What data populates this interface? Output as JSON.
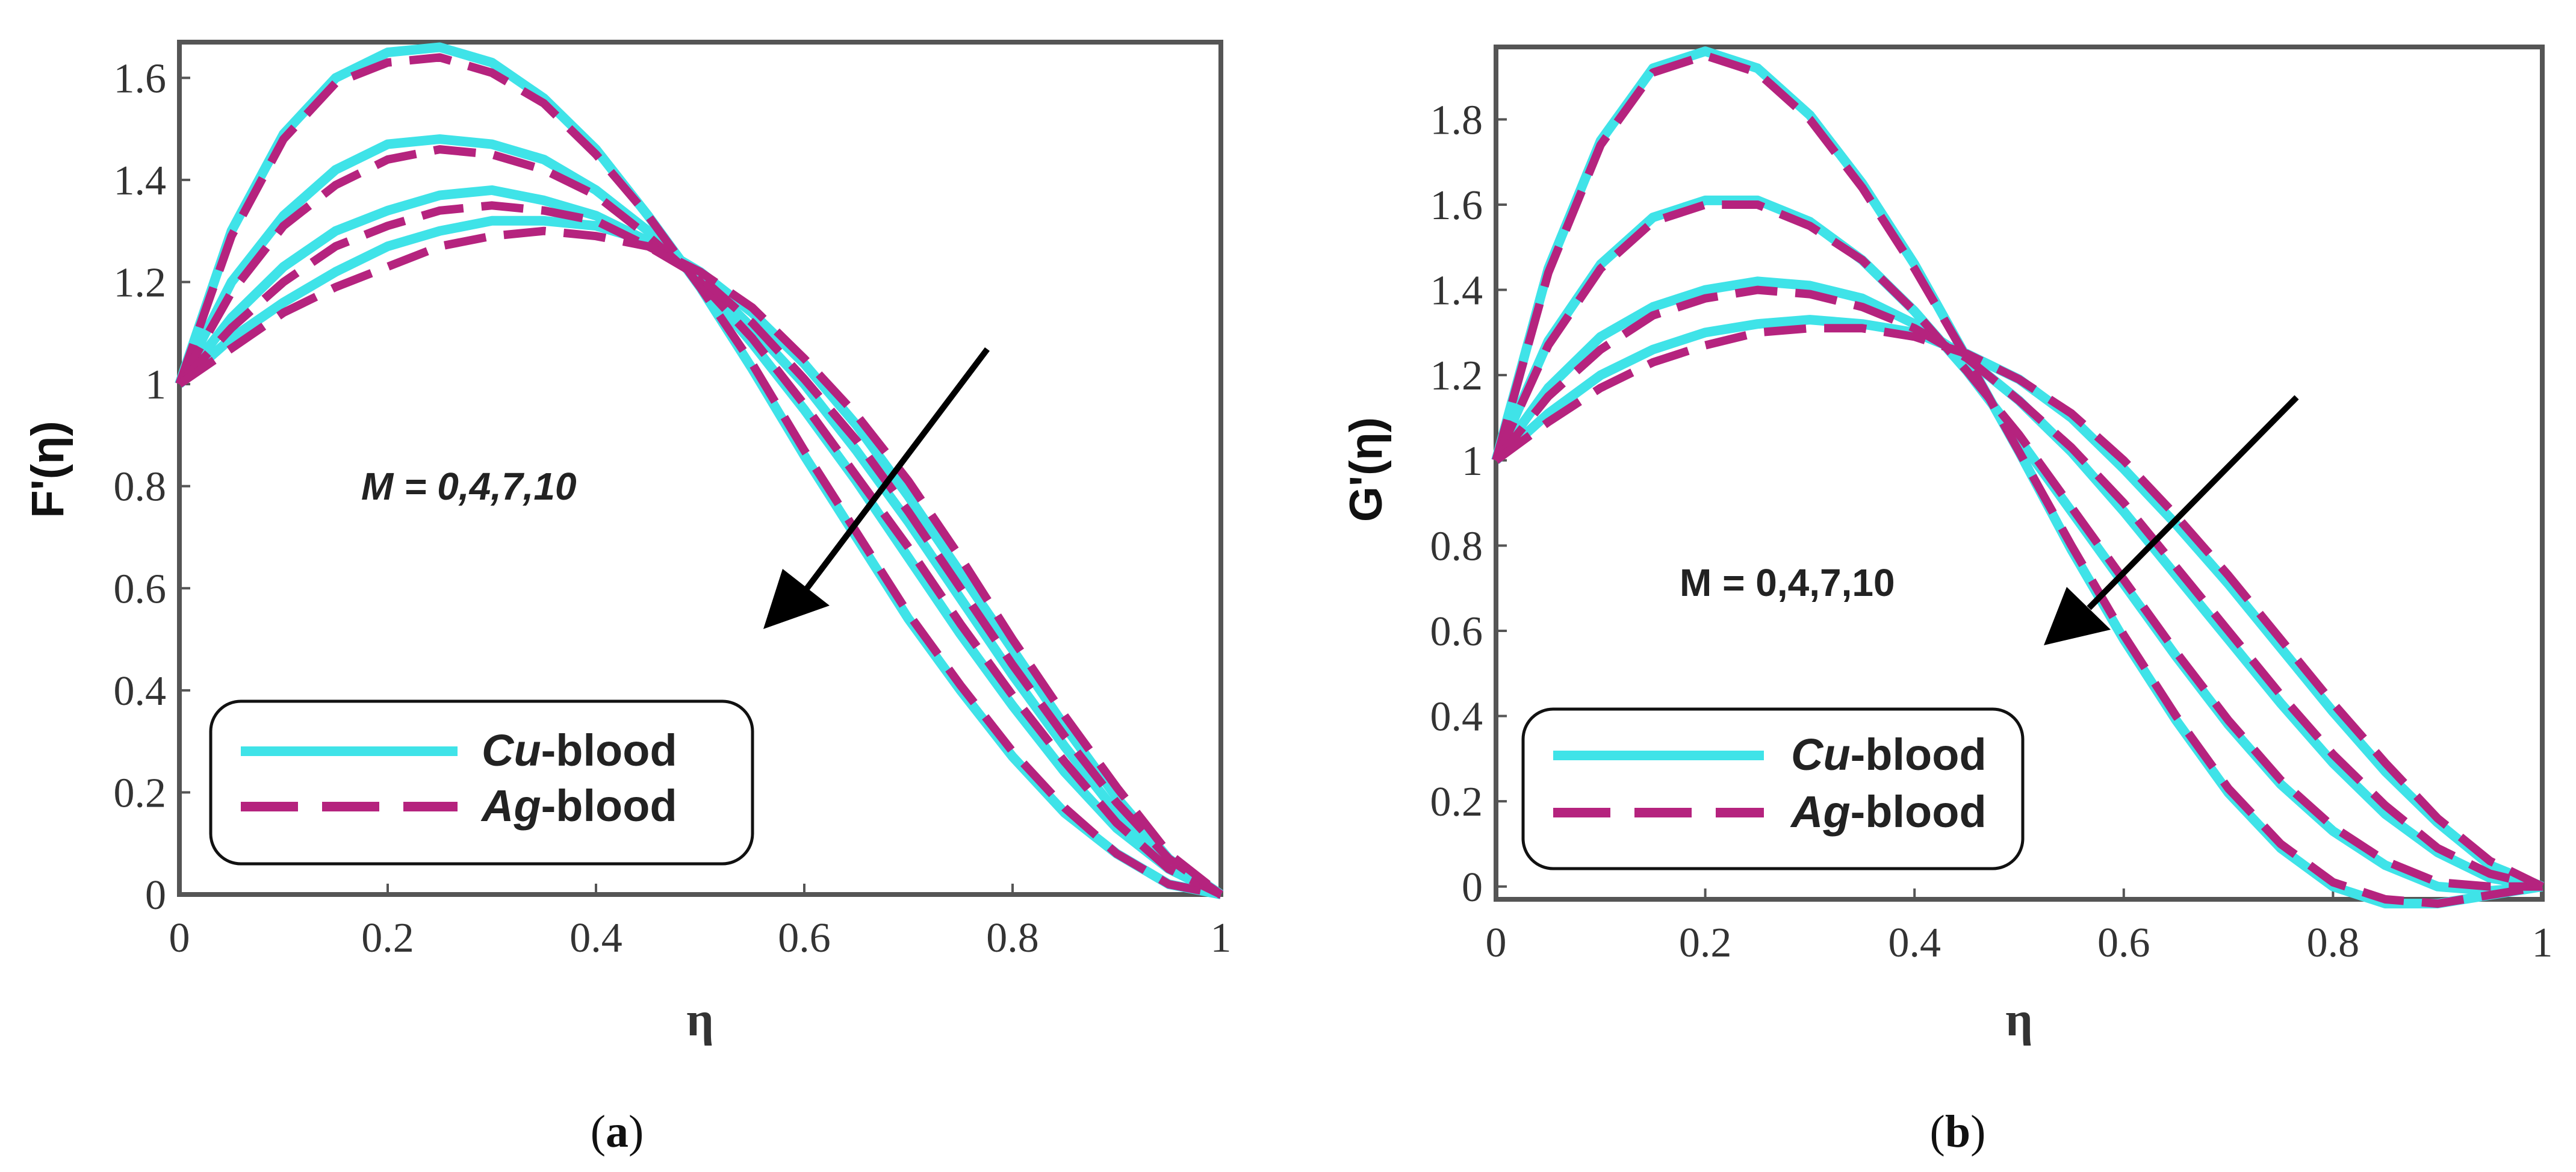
{
  "colors": {
    "cu": "#3FE3E8",
    "ag": "#B5237E",
    "frame": "#555555",
    "arrow": "#000000"
  },
  "chart_data": [
    {
      "type": "line",
      "panel": "a",
      "caption": "(a)",
      "xlabel": "η",
      "ylabel": "F'(η)",
      "xlim": [
        0,
        1
      ],
      "ylim": [
        0,
        1.67
      ],
      "xticks": [
        0,
        0.2,
        0.4,
        0.6,
        0.8,
        1
      ],
      "xtick_labels": [
        "0",
        "0.2",
        "0.4",
        "0.6",
        "0.8",
        "1"
      ],
      "yticks": [
        0,
        0.2,
        0.4,
        0.6,
        0.8,
        1,
        1.2,
        1.4,
        1.6
      ],
      "ytick_labels": [
        "0",
        "0.2",
        "0.4",
        "0.6",
        "0.8",
        "1",
        "1.2",
        "1.4",
        "1.6"
      ],
      "annotation": "M = 0,4,7,10",
      "legend": {
        "position": "bottom-left",
        "entries": [
          "Cu-blood",
          "Ag-blood"
        ]
      },
      "series": [
        {
          "name": "Cu-blood",
          "M": 0,
          "style": "solid",
          "x": [
            0,
            0.05,
            0.1,
            0.15,
            0.2,
            0.25,
            0.3,
            0.35,
            0.4,
            0.45,
            0.5,
            0.55,
            0.6,
            0.65,
            0.7,
            0.75,
            0.8,
            0.85,
            0.9,
            0.95,
            1
          ],
          "y": [
            1,
            1.3,
            1.49,
            1.6,
            1.65,
            1.66,
            1.63,
            1.56,
            1.46,
            1.33,
            1.19,
            1.03,
            0.86,
            0.7,
            0.54,
            0.4,
            0.27,
            0.16,
            0.08,
            0.02,
            0
          ]
        },
        {
          "name": "Ag-blood",
          "M": 0,
          "style": "dashed",
          "x": [
            0,
            0.05,
            0.1,
            0.15,
            0.2,
            0.25,
            0.3,
            0.35,
            0.4,
            0.45,
            0.5,
            0.55,
            0.6,
            0.65,
            0.7,
            0.75,
            0.8,
            0.85,
            0.9,
            0.95,
            1
          ],
          "y": [
            1,
            1.29,
            1.48,
            1.59,
            1.63,
            1.64,
            1.61,
            1.55,
            1.45,
            1.33,
            1.19,
            1.04,
            0.87,
            0.71,
            0.55,
            0.41,
            0.28,
            0.17,
            0.08,
            0.02,
            0
          ]
        },
        {
          "name": "Cu-blood",
          "M": 4,
          "style": "solid",
          "x": [
            0,
            0.05,
            0.1,
            0.15,
            0.2,
            0.25,
            0.3,
            0.35,
            0.4,
            0.45,
            0.5,
            0.55,
            0.6,
            0.65,
            0.7,
            0.75,
            0.8,
            0.85,
            0.9,
            0.95,
            1
          ],
          "y": [
            1,
            1.2,
            1.33,
            1.42,
            1.47,
            1.48,
            1.47,
            1.44,
            1.38,
            1.3,
            1.2,
            1.08,
            0.95,
            0.81,
            0.66,
            0.51,
            0.37,
            0.24,
            0.13,
            0.05,
            0
          ]
        },
        {
          "name": "Ag-blood",
          "M": 4,
          "style": "dashed",
          "x": [
            0,
            0.05,
            0.1,
            0.15,
            0.2,
            0.25,
            0.3,
            0.35,
            0.4,
            0.45,
            0.5,
            0.55,
            0.6,
            0.65,
            0.7,
            0.75,
            0.8,
            0.85,
            0.9,
            0.95,
            1
          ],
          "y": [
            1,
            1.18,
            1.31,
            1.39,
            1.44,
            1.46,
            1.45,
            1.42,
            1.37,
            1.29,
            1.2,
            1.09,
            0.96,
            0.82,
            0.68,
            0.53,
            0.39,
            0.26,
            0.14,
            0.05,
            0
          ]
        },
        {
          "name": "Cu-blood",
          "M": 7,
          "style": "solid",
          "x": [
            0,
            0.05,
            0.1,
            0.15,
            0.2,
            0.25,
            0.3,
            0.35,
            0.4,
            0.45,
            0.5,
            0.55,
            0.6,
            0.65,
            0.7,
            0.75,
            0.8,
            0.85,
            0.9,
            0.95,
            1
          ],
          "y": [
            1,
            1.13,
            1.23,
            1.3,
            1.34,
            1.37,
            1.38,
            1.36,
            1.33,
            1.28,
            1.21,
            1.11,
            1.0,
            0.87,
            0.73,
            0.58,
            0.43,
            0.29,
            0.16,
            0.06,
            0
          ]
        },
        {
          "name": "Ag-blood",
          "M": 7,
          "style": "dashed",
          "x": [
            0,
            0.05,
            0.1,
            0.15,
            0.2,
            0.25,
            0.3,
            0.35,
            0.4,
            0.45,
            0.5,
            0.55,
            0.6,
            0.65,
            0.7,
            0.75,
            0.8,
            0.85,
            0.9,
            0.95,
            1
          ],
          "y": [
            1,
            1.11,
            1.2,
            1.27,
            1.31,
            1.34,
            1.35,
            1.34,
            1.32,
            1.27,
            1.21,
            1.12,
            1.01,
            0.89,
            0.75,
            0.6,
            0.45,
            0.31,
            0.18,
            0.07,
            0
          ]
        },
        {
          "name": "Cu-blood",
          "M": 10,
          "style": "solid",
          "x": [
            0,
            0.05,
            0.1,
            0.15,
            0.2,
            0.25,
            0.3,
            0.35,
            0.4,
            0.45,
            0.5,
            0.55,
            0.6,
            0.65,
            0.7,
            0.75,
            0.8,
            0.85,
            0.9,
            0.95,
            1
          ],
          "y": [
            1,
            1.09,
            1.16,
            1.22,
            1.27,
            1.3,
            1.32,
            1.32,
            1.31,
            1.28,
            1.22,
            1.14,
            1.04,
            0.92,
            0.78,
            0.63,
            0.48,
            0.33,
            0.19,
            0.07,
            0
          ]
        },
        {
          "name": "Ag-blood",
          "M": 10,
          "style": "dashed",
          "x": [
            0,
            0.05,
            0.1,
            0.15,
            0.2,
            0.25,
            0.3,
            0.35,
            0.4,
            0.45,
            0.5,
            0.55,
            0.6,
            0.65,
            0.7,
            0.75,
            0.8,
            0.85,
            0.9,
            0.95,
            1
          ],
          "y": [
            1,
            1.07,
            1.14,
            1.19,
            1.23,
            1.27,
            1.29,
            1.3,
            1.29,
            1.27,
            1.22,
            1.15,
            1.05,
            0.94,
            0.81,
            0.66,
            0.5,
            0.35,
            0.21,
            0.08,
            0
          ]
        }
      ]
    },
    {
      "type": "line",
      "panel": "b",
      "caption": "(b)",
      "xlabel": "η",
      "ylabel": "G'(η)",
      "xlim": [
        0,
        1
      ],
      "ylim": [
        -0.03,
        1.97
      ],
      "xticks": [
        0,
        0.2,
        0.4,
        0.6,
        0.8,
        1
      ],
      "xtick_labels": [
        "0",
        "0.2",
        "0.4",
        "0.6",
        "0.8",
        "1"
      ],
      "yticks": [
        0,
        0.2,
        0.4,
        0.6,
        0.8,
        1,
        1.2,
        1.4,
        1.6,
        1.8
      ],
      "ytick_labels": [
        "0",
        "0.2",
        "0.4",
        "0.6",
        "0.8",
        "1",
        "1.2",
        "1.4",
        "1.6",
        "1.8"
      ],
      "annotation": "M = 0,4,7,10",
      "legend": {
        "position": "bottom-left",
        "entries": [
          "Cu-blood",
          "Ag-blood"
        ]
      },
      "series": [
        {
          "name": "Cu-blood",
          "M": 0,
          "style": "solid",
          "x": [
            0,
            0.05,
            0.1,
            0.15,
            0.2,
            0.25,
            0.3,
            0.35,
            0.4,
            0.45,
            0.5,
            0.55,
            0.6,
            0.65,
            0.7,
            0.75,
            0.8,
            0.85,
            0.9,
            0.95,
            1
          ],
          "y": [
            1,
            1.45,
            1.75,
            1.92,
            1.96,
            1.92,
            1.81,
            1.65,
            1.46,
            1.24,
            1.02,
            0.79,
            0.58,
            0.39,
            0.22,
            0.09,
            0.0,
            -0.04,
            -0.04,
            -0.02,
            0
          ]
        },
        {
          "name": "Ag-blood",
          "M": 0,
          "style": "dashed",
          "x": [
            0,
            0.05,
            0.1,
            0.15,
            0.2,
            0.25,
            0.3,
            0.35,
            0.4,
            0.45,
            0.5,
            0.55,
            0.6,
            0.65,
            0.7,
            0.75,
            0.8,
            0.85,
            0.9,
            0.95,
            1
          ],
          "y": [
            1,
            1.44,
            1.74,
            1.91,
            1.95,
            1.91,
            1.8,
            1.64,
            1.45,
            1.24,
            1.02,
            0.8,
            0.59,
            0.4,
            0.23,
            0.1,
            0.01,
            -0.03,
            -0.04,
            -0.02,
            0
          ]
        },
        {
          "name": "Cu-blood",
          "M": 4,
          "style": "solid",
          "x": [
            0,
            0.05,
            0.1,
            0.15,
            0.2,
            0.25,
            0.3,
            0.35,
            0.4,
            0.45,
            0.5,
            0.55,
            0.6,
            0.65,
            0.7,
            0.75,
            0.8,
            0.85,
            0.9,
            0.95,
            1
          ],
          "y": [
            1,
            1.28,
            1.46,
            1.57,
            1.61,
            1.61,
            1.56,
            1.47,
            1.35,
            1.21,
            1.05,
            0.88,
            0.71,
            0.54,
            0.38,
            0.24,
            0.13,
            0.05,
            0.0,
            -0.01,
            0
          ]
        },
        {
          "name": "Ag-blood",
          "M": 4,
          "style": "dashed",
          "x": [
            0,
            0.05,
            0.1,
            0.15,
            0.2,
            0.25,
            0.3,
            0.35,
            0.4,
            0.45,
            0.5,
            0.55,
            0.6,
            0.65,
            0.7,
            0.75,
            0.8,
            0.85,
            0.9,
            0.95,
            1
          ],
          "y": [
            1,
            1.27,
            1.45,
            1.56,
            1.6,
            1.6,
            1.55,
            1.47,
            1.35,
            1.21,
            1.06,
            0.89,
            0.72,
            0.55,
            0.39,
            0.25,
            0.14,
            0.06,
            0.01,
            0.0,
            0
          ]
        },
        {
          "name": "Cu-blood",
          "M": 7,
          "style": "solid",
          "x": [
            0,
            0.05,
            0.1,
            0.15,
            0.2,
            0.25,
            0.3,
            0.35,
            0.4,
            0.45,
            0.5,
            0.55,
            0.6,
            0.65,
            0.7,
            0.75,
            0.8,
            0.85,
            0.9,
            0.95,
            1
          ],
          "y": [
            1,
            1.17,
            1.29,
            1.36,
            1.4,
            1.42,
            1.41,
            1.38,
            1.32,
            1.24,
            1.14,
            1.02,
            0.88,
            0.73,
            0.58,
            0.43,
            0.29,
            0.17,
            0.08,
            0.02,
            0
          ]
        },
        {
          "name": "Ag-blood",
          "M": 7,
          "style": "dashed",
          "x": [
            0,
            0.05,
            0.1,
            0.15,
            0.2,
            0.25,
            0.3,
            0.35,
            0.4,
            0.45,
            0.5,
            0.55,
            0.6,
            0.65,
            0.7,
            0.75,
            0.8,
            0.85,
            0.9,
            0.95,
            1
          ],
          "y": [
            1,
            1.15,
            1.26,
            1.34,
            1.38,
            1.4,
            1.39,
            1.36,
            1.31,
            1.24,
            1.14,
            1.03,
            0.9,
            0.75,
            0.6,
            0.45,
            0.31,
            0.19,
            0.09,
            0.03,
            0
          ]
        },
        {
          "name": "Cu-blood",
          "M": 10,
          "style": "solid",
          "x": [
            0,
            0.05,
            0.1,
            0.15,
            0.2,
            0.25,
            0.3,
            0.35,
            0.4,
            0.45,
            0.5,
            0.55,
            0.6,
            0.65,
            0.7,
            0.75,
            0.8,
            0.85,
            0.9,
            0.95,
            1
          ],
          "y": [
            1,
            1.11,
            1.2,
            1.26,
            1.3,
            1.32,
            1.33,
            1.32,
            1.3,
            1.25,
            1.19,
            1.1,
            0.98,
            0.85,
            0.71,
            0.56,
            0.41,
            0.27,
            0.15,
            0.05,
            0
          ]
        },
        {
          "name": "Ag-blood",
          "M": 10,
          "style": "dashed",
          "x": [
            0,
            0.05,
            0.1,
            0.15,
            0.2,
            0.25,
            0.3,
            0.35,
            0.4,
            0.45,
            0.5,
            0.55,
            0.6,
            0.65,
            0.7,
            0.75,
            0.8,
            0.85,
            0.9,
            0.95,
            1
          ],
          "y": [
            1,
            1.09,
            1.17,
            1.23,
            1.27,
            1.3,
            1.31,
            1.31,
            1.29,
            1.25,
            1.19,
            1.11,
            1.0,
            0.87,
            0.73,
            0.58,
            0.43,
            0.29,
            0.16,
            0.06,
            0
          ]
        }
      ]
    }
  ]
}
